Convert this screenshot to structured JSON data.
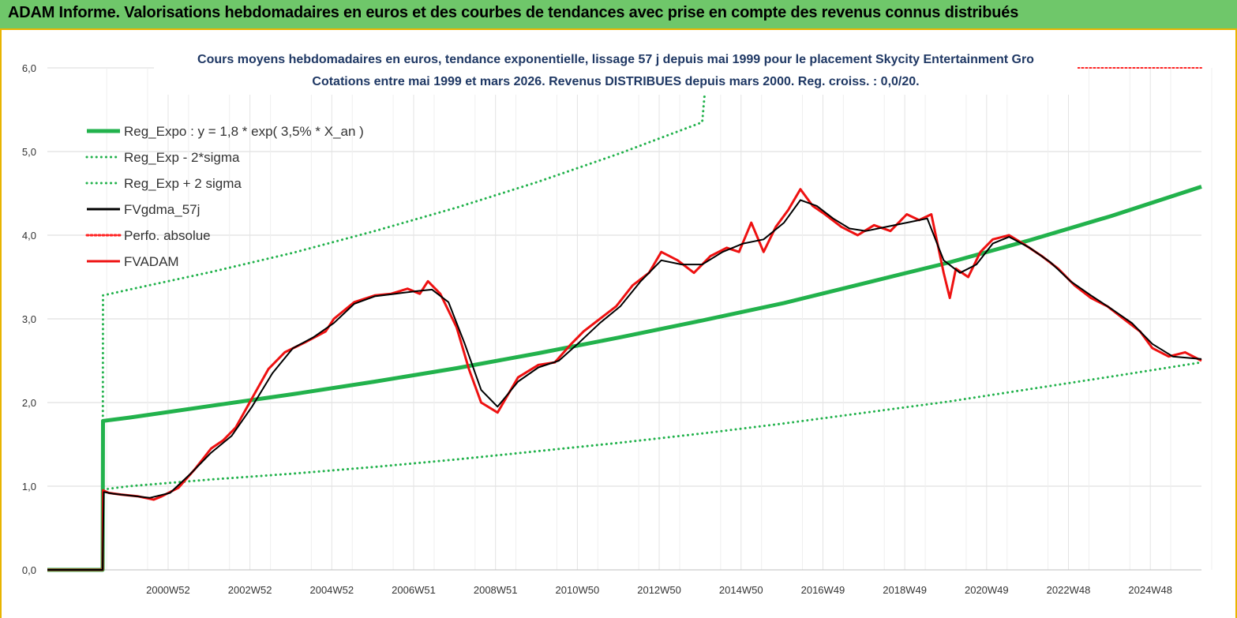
{
  "header": {
    "title": "ADAM Informe. Valorisations hebdomadaires en euros et des courbes de tendances avec prise en compte des revenus connus distribués"
  },
  "chart_data": {
    "type": "line",
    "title_line1": "Cours moyens hebdomadaires en euros, tendance exponentielle, lissage 57 j depuis mai 1999 pour le placement Skycity Entertainment Gro",
    "title_line2": "Cotations entre mai 1999 et mars 2026. Revenus DISTRIBUES depuis mars 2000. Reg. croiss. : 0,0/20.",
    "xlabel": "",
    "ylabel": "",
    "x_range": [
      1998.0,
      2026.2
    ],
    "ylim": [
      0,
      6
    ],
    "y_ticks": [
      0,
      1,
      2,
      3,
      4,
      5,
      6
    ],
    "y_tick_labels": [
      "0,0",
      "1,0",
      "2,0",
      "3,0",
      "4,0",
      "5,0",
      "6,0"
    ],
    "x_ticks": [
      2000.95,
      2002.95,
      2004.95,
      2006.95,
      2008.95,
      2010.95,
      2012.95,
      2014.95,
      2016.95,
      2018.95,
      2020.95,
      2022.95,
      2024.95
    ],
    "x_tick_labels": [
      "2000W52",
      "2002W52",
      "2004W52",
      "2006W51",
      "2008W51",
      "2010W50",
      "2012W50",
      "2014W50",
      "2016W49",
      "2018W49",
      "2020W49",
      "2022W48",
      "2024W48"
    ],
    "grid": true,
    "legend_position": "top-left",
    "series": [
      {
        "name": "Reg_Expo : y = 1,8 * exp( 3,5% *  X_an )",
        "color": "#22b24c",
        "style": "solid",
        "width": 5,
        "x": [
          1998.0,
          1999.35,
          1999.36,
          2000,
          2002,
          2004,
          2006,
          2008,
          2010,
          2012,
          2014,
          2016,
          2018,
          2020,
          2022,
          2024,
          2026.2
        ],
        "values": [
          0,
          0,
          1.78,
          1.82,
          1.96,
          2.1,
          2.25,
          2.41,
          2.59,
          2.78,
          2.98,
          3.19,
          3.43,
          3.67,
          3.94,
          4.23,
          4.58
        ]
      },
      {
        "name": "Reg_Exp - 2*sigma",
        "color": "#22b24c",
        "style": "dotted",
        "width": 3,
        "x": [
          1999.36,
          2000,
          2002,
          2004,
          2006,
          2008,
          2010,
          2012,
          2014,
          2016,
          2018,
          2020,
          2022,
          2024,
          2026.2
        ],
        "values": [
          0.96,
          1.0,
          1.08,
          1.15,
          1.23,
          1.32,
          1.42,
          1.52,
          1.63,
          1.75,
          1.88,
          2.01,
          2.16,
          2.31,
          2.48
        ]
      },
      {
        "name": "Reg_Exp + 2 sigma",
        "color": "#22b24c",
        "style": "dotted",
        "width": 3,
        "x": [
          1999.35,
          1999.36,
          2000,
          2002,
          2004,
          2006,
          2008,
          2010,
          2012,
          2014,
          2014.06
        ],
        "values": [
          0,
          3.28,
          3.35,
          3.56,
          3.79,
          4.05,
          4.33,
          4.64,
          4.98,
          5.35,
          5.68
        ]
      },
      {
        "name": "Perfo. absolue",
        "color": "#ff2020",
        "style": "dotted",
        "width": 2,
        "x": [
          2022.6,
          2026.2
        ],
        "values": [
          6.0,
          6.0
        ]
      },
      {
        "name": "FVADAM",
        "color": "#ee1111",
        "style": "solid",
        "width": 3,
        "x": [
          1998.0,
          1999.35,
          1999.36,
          1999.5,
          1999.8,
          2000.2,
          2000.6,
          2000.8,
          2001.2,
          2001.6,
          2002.0,
          2002.3,
          2002.6,
          2003.0,
          2003.4,
          2003.8,
          2004.3,
          2004.8,
          2005.0,
          2005.5,
          2006.0,
          2006.4,
          2006.8,
          2007.1,
          2007.3,
          2007.6,
          2008.0,
          2008.3,
          2008.6,
          2009.0,
          2009.5,
          2010.0,
          2010.4,
          2010.8,
          2011.1,
          2011.5,
          2011.9,
          2012.3,
          2012.7,
          2013.0,
          2013.4,
          2013.8,
          2014.2,
          2014.6,
          2014.9,
          2015.2,
          2015.5,
          2015.8,
          2016.1,
          2016.4,
          2016.7,
          2017.0,
          2017.4,
          2017.8,
          2018.2,
          2018.6,
          2019.0,
          2019.3,
          2019.6,
          2019.9,
          2020.05,
          2020.2,
          2020.5,
          2020.8,
          2021.1,
          2021.5,
          2021.9,
          2022.3,
          2022.7,
          2023.1,
          2023.5,
          2023.9,
          2024.3,
          2024.7,
          2025.0,
          2025.4,
          2025.8,
          2026.2
        ],
        "values": [
          0,
          0,
          0.95,
          0.92,
          0.9,
          0.88,
          0.84,
          0.88,
          0.98,
          1.2,
          1.45,
          1.55,
          1.7,
          2.05,
          2.4,
          2.6,
          2.72,
          2.85,
          3.0,
          3.2,
          3.28,
          3.3,
          3.36,
          3.3,
          3.45,
          3.3,
          2.9,
          2.4,
          2.0,
          1.88,
          2.3,
          2.45,
          2.48,
          2.7,
          2.85,
          3.0,
          3.15,
          3.4,
          3.55,
          3.8,
          3.7,
          3.55,
          3.75,
          3.85,
          3.8,
          4.15,
          3.8,
          4.1,
          4.3,
          4.55,
          4.35,
          4.25,
          4.1,
          4.0,
          4.12,
          4.05,
          4.25,
          4.18,
          4.25,
          3.55,
          3.25,
          3.6,
          3.5,
          3.8,
          3.95,
          4.0,
          3.88,
          3.75,
          3.6,
          3.4,
          3.25,
          3.15,
          3.0,
          2.85,
          2.65,
          2.55,
          2.6,
          2.5
        ]
      },
      {
        "name": "FVgdma_57j",
        "color": "#000000",
        "style": "solid",
        "width": 2,
        "x": [
          1998.0,
          1999.35,
          1999.38,
          1999.6,
          2000.0,
          2000.5,
          2001.0,
          2001.5,
          2002.0,
          2002.5,
          2003.0,
          2003.5,
          2004.0,
          2004.5,
          2005.0,
          2005.5,
          2006.0,
          2006.5,
          2007.0,
          2007.4,
          2007.8,
          2008.2,
          2008.6,
          2009.0,
          2009.5,
          2010.0,
          2010.5,
          2011.0,
          2011.5,
          2012.0,
          2012.5,
          2013.0,
          2013.5,
          2014.0,
          2014.5,
          2015.0,
          2015.5,
          2016.0,
          2016.4,
          2016.8,
          2017.2,
          2017.6,
          2018.0,
          2018.5,
          2019.0,
          2019.5,
          2019.9,
          2020.3,
          2020.7,
          2021.1,
          2021.5,
          2022.0,
          2022.5,
          2023.0,
          2023.5,
          2024.0,
          2024.5,
          2025.0,
          2025.5,
          2026.2
        ],
        "values": [
          0,
          0,
          0.93,
          0.91,
          0.89,
          0.86,
          0.92,
          1.15,
          1.4,
          1.6,
          1.95,
          2.35,
          2.65,
          2.78,
          2.95,
          3.18,
          3.27,
          3.3,
          3.33,
          3.35,
          3.2,
          2.7,
          2.15,
          1.95,
          2.25,
          2.42,
          2.5,
          2.72,
          2.95,
          3.15,
          3.45,
          3.7,
          3.65,
          3.65,
          3.8,
          3.9,
          3.95,
          4.15,
          4.42,
          4.35,
          4.2,
          4.08,
          4.05,
          4.1,
          4.15,
          4.2,
          3.7,
          3.55,
          3.65,
          3.9,
          3.98,
          3.85,
          3.68,
          3.45,
          3.28,
          3.12,
          2.95,
          2.7,
          2.55,
          2.52
        ]
      }
    ],
    "legend": [
      {
        "label": "Reg_Expo : y = 1,8 * exp( 3,5% *  X_an )",
        "color": "#22b24c",
        "style": "solid"
      },
      {
        "label": "Reg_Exp - 2*sigma",
        "color": "#22b24c",
        "style": "dotted"
      },
      {
        "label": "Reg_Exp + 2 sigma",
        "color": "#22b24c",
        "style": "dotted"
      },
      {
        "label": "FVgdma_57j",
        "color": "#000000",
        "style": "solid"
      },
      {
        "label": "Perfo. absolue",
        "color": "#ff2020",
        "style": "dotted"
      },
      {
        "label": "FVADAM",
        "color": "#ee1111",
        "style": "solid"
      }
    ]
  }
}
